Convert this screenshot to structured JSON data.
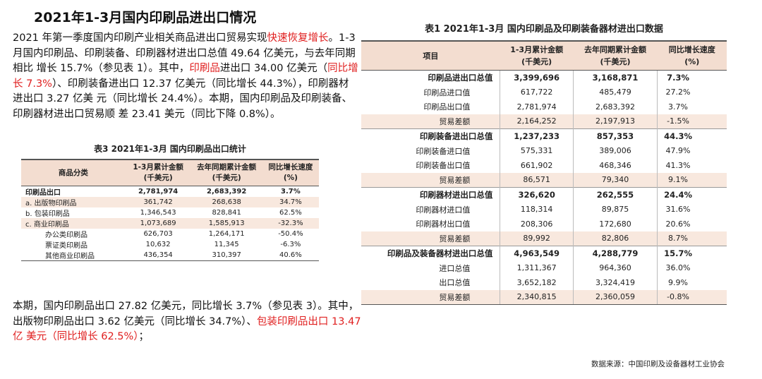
{
  "title": "2021年1-3月国内印刷品进出口情况",
  "para1": {
    "s1": "2021 年第一季度国内印刷产业相关商品进出口贸易实现",
    "s1_red": "快速恢复增长",
    "s2": "。1-3 月国内印刷品、印刷装备、印刷器材进出口总值 49.64 亿美元，与去年同期相比 增长 15.7%（参见表 1）。其中，",
    "s2_red": "印刷品",
    "s3": "进出口 34.00 亿美元（",
    "s3_red": "同比增长 7.3%",
    "s4": "）、印刷装备进出口 12.37 亿美元（同比增长 44.3%），印刷器材进出口 3.27 亿美 元（同比增长 24.4%）。本期，国内印刷品及印刷装备、印刷器材进出口贸易顺 差 23.41 美元（同比下降 0.8%）。"
  },
  "para2": {
    "s1": "本期，国内印刷品出口 27.82 亿美元，同比增长 3.7%（参见表 3）。其中， 出版物印刷品出口 3.62 亿美元（同比增长 34.7%）、",
    "s1_red": "包装印刷品出口 13.47 亿 美元（同比增长 62.5%）",
    "s2": "；"
  },
  "table3": {
    "caption": "表3    2021年1-3月 国内印刷品出口统计",
    "headers": [
      "商品分类",
      "1-3月累计金额\n(千美元)",
      "去年同期累计金额\n(千美元)",
      "同比增长速度\n(%)"
    ],
    "rows": [
      {
        "label": "印刷品出口",
        "v1": "2,781,974",
        "v2": "2,683,392",
        "v3": "3.7%",
        "bold": true,
        "level": 1,
        "shade": false
      },
      {
        "label": "a. 出版物印刷品",
        "v1": "361,742",
        "v2": "268,638",
        "v3": "34.7%",
        "bold": false,
        "level": 1,
        "shade": true
      },
      {
        "label": "b. 包装印刷品",
        "v1": "1,346,543",
        "v2": "828,841",
        "v3": "62.5%",
        "bold": false,
        "level": 1,
        "shade": false
      },
      {
        "label": "c. 商业印刷品",
        "v1": "1,073,689",
        "v2": "1,585,913",
        "v3": "-32.3%",
        "bold": false,
        "level": 1,
        "shade": true
      },
      {
        "label": "办公类印刷品",
        "v1": "626,703",
        "v2": "1,264,171",
        "v3": "-50.4%",
        "bold": false,
        "level": 2,
        "shade": false
      },
      {
        "label": "票证类印刷品",
        "v1": "10,632",
        "v2": "11,345",
        "v3": "-6.3%",
        "bold": false,
        "level": 2,
        "shade": false
      },
      {
        "label": "其他商业印刷品",
        "v1": "436,354",
        "v2": "310,397",
        "v3": "40.6%",
        "bold": false,
        "level": 2,
        "shade": false
      }
    ]
  },
  "table1": {
    "caption": "表1    2021年1-3月 国内印刷品及印刷装备器材进出口数据",
    "headers": [
      "项目",
      "1-3月累计金额\n(千美元)",
      "去年同期累计金额\n(千美元)",
      "同比增长速度\n(%)"
    ],
    "groups": [
      {
        "rows": [
          {
            "label": "印刷品进出口总值",
            "v1": "3,399,696",
            "v2": "3,168,871",
            "v3": "7.3%"
          },
          {
            "label": "印刷品进口值",
            "v1": "617,722",
            "v2": "485,479",
            "v3": "27.2%"
          },
          {
            "label": "印刷品出口值",
            "v1": "2,781,974",
            "v2": "2,683,392",
            "v3": "3.7%"
          },
          {
            "label": "贸易差额",
            "v1": "2,164,252",
            "v2": "2,197,913",
            "v3": "-1.5%"
          }
        ]
      },
      {
        "rows": [
          {
            "label": "印刷装备进出口总值",
            "v1": "1,237,233",
            "v2": "857,353",
            "v3": "44.3%"
          },
          {
            "label": "印刷装备进口值",
            "v1": "575,331",
            "v2": "389,006",
            "v3": "47.9%"
          },
          {
            "label": "印刷装备出口值",
            "v1": "661,902",
            "v2": "468,346",
            "v3": "41.3%"
          },
          {
            "label": "贸易差额",
            "v1": "86,571",
            "v2": "79,340",
            "v3": "9.1%"
          }
        ]
      },
      {
        "rows": [
          {
            "label": "印刷器材进出口总值",
            "v1": "326,620",
            "v2": "262,555",
            "v3": "24.4%"
          },
          {
            "label": "印刷器材进口值",
            "v1": "118,314",
            "v2": "89,875",
            "v3": "31.6%"
          },
          {
            "label": "印刷器材出口值",
            "v1": "208,306",
            "v2": "172,680",
            "v3": "20.6%"
          },
          {
            "label": "贸易差额",
            "v1": "89,992",
            "v2": "82,806",
            "v3": "8.7%"
          }
        ]
      },
      {
        "rows": [
          {
            "label": "印刷品及装备器材进出口总值",
            "v1": "4,963,549",
            "v2": "4,288,779",
            "v3": "15.7%"
          },
          {
            "label": "进口总值",
            "v1": "1,311,367",
            "v2": "964,360",
            "v3": "36.0%"
          },
          {
            "label": "出口总值",
            "v1": "3,652,182",
            "v2": "3,324,419",
            "v3": "9.9%"
          },
          {
            "label": "贸易差额",
            "v1": "2,340,815",
            "v2": "2,360,059",
            "v3": "-0.8%"
          }
        ]
      }
    ],
    "source": "数据来源：中国印刷及设备器材工业协会"
  }
}
